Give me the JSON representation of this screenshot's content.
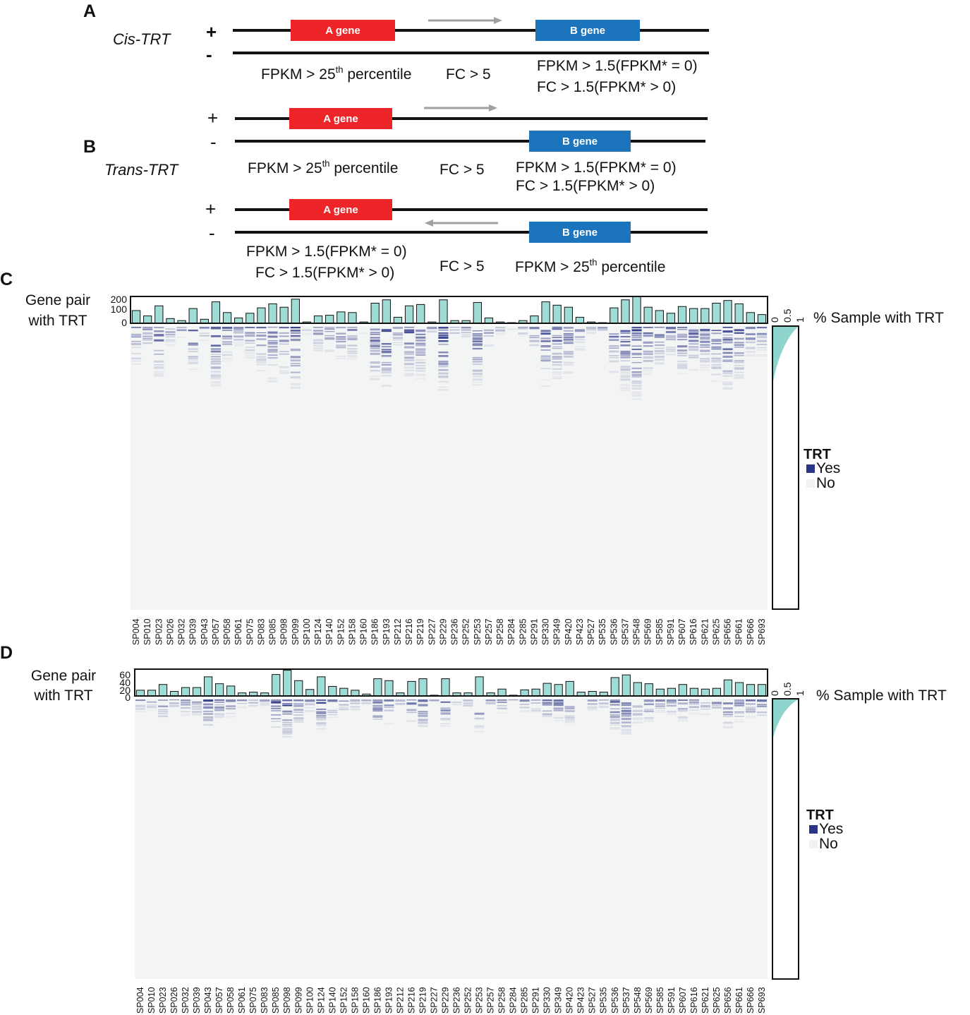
{
  "colors": {
    "a_gene": "#ee2528",
    "b_gene": "#1c75bc",
    "strand": "#111111",
    "arrow": "#a0a0a0",
    "bar_fill": "#9fdcd6",
    "trt_yes": "#2a3586",
    "trt_no": "#f1f2f2",
    "heat_bg": "#f3f4f4",
    "side_area": "#8fd3cd"
  },
  "panels": {
    "A": {
      "letter": "A",
      "title": "Cis-TRT",
      "plus": "+",
      "minus": "-",
      "a_gene": "A gene",
      "b_gene": "B gene",
      "crit_a_pre": "FPKM > 25",
      "crit_a_sup": "th",
      "crit_a_post": " percentile",
      "fc": "FC > 5",
      "crit_b1": "FPKM > 1.5(FPKM* = 0)",
      "crit_b2": "FC > 1.5(FPKM* > 0)"
    },
    "B": {
      "letter": "B",
      "title": "Trans-TRT",
      "top": {
        "plus": "+",
        "minus": "-",
        "a_gene": "A gene",
        "b_gene": "B gene",
        "crit_a_pre": "FPKM > 25",
        "crit_a_sup": "th",
        "crit_a_post": " percentile",
        "fc": "FC > 5",
        "crit_b1": "FPKM > 1.5(FPKM* = 0)",
        "crit_b2": "FC > 1.5(FPKM* > 0)"
      },
      "bottom": {
        "plus": "+",
        "minus": "-",
        "a_gene": "A gene",
        "b_gene": "B gene",
        "crit_a1": "FPKM > 1.5(FPKM* = 0)",
        "crit_a2": "FC > 1.5(FPKM* > 0)",
        "fc": "FC > 5",
        "crit_b_pre": "FPKM > 25",
        "crit_b_sup": "th",
        "crit_b_post": " percentile"
      }
    },
    "C": {
      "letter": "C",
      "ylabel1": "Gene pair",
      "ylabel2": "with TRT",
      "right_label": "% Sample with TRT",
      "yticks": [
        "200",
        "100",
        "0"
      ],
      "side_ticks": [
        "0",
        "0.5",
        "1"
      ],
      "legend_title": "TRT",
      "legend_yes": "Yes",
      "legend_no": "No"
    },
    "D": {
      "letter": "D",
      "ylabel1": "Gene pair",
      "ylabel2": "with TRT",
      "right_label": "% Sample with TRT",
      "yticks": [
        "60",
        "40",
        "20",
        "0"
      ],
      "side_ticks": [
        "0",
        "0.5",
        "1"
      ],
      "legend_title": "TRT",
      "legend_yes": "Yes",
      "legend_no": "No"
    }
  },
  "chart_data": [
    {
      "type": "bar",
      "panel": "C",
      "ylabel": "Gene pair with TRT",
      "ylim": [
        0,
        200
      ],
      "categories": [
        "SP004",
        "SP010",
        "SP023",
        "SP026",
        "SP032",
        "SP039",
        "SP043",
        "SP057",
        "SP058",
        "SP061",
        "SP075",
        "SP083",
        "SP085",
        "SP098",
        "SP099",
        "SP100",
        "SP124",
        "SP140",
        "SP152",
        "SP158",
        "SP160",
        "SP186",
        "SP193",
        "SP212",
        "SP216",
        "SP219",
        "SP227",
        "SP229",
        "SP236",
        "SP252",
        "SP253",
        "SP257",
        "SP258",
        "SP284",
        "SP285",
        "SP291",
        "SP330",
        "SP349",
        "SP420",
        "SP423",
        "SP527",
        "SP535",
        "SP536",
        "SP537",
        "SP548",
        "SP569",
        "SP585",
        "SP591",
        "SP607",
        "SP616",
        "SP621",
        "SP625",
        "SP656",
        "SP661",
        "SP666",
        "SP693"
      ],
      "values": [
        95,
        55,
        130,
        35,
        20,
        110,
        30,
        160,
        80,
        40,
        75,
        115,
        145,
        120,
        180,
        10,
        55,
        60,
        85,
        80,
        10,
        150,
        175,
        45,
        130,
        140,
        10,
        175,
        20,
        20,
        155,
        40,
        10,
        5,
        20,
        55,
        160,
        135,
        120,
        45,
        10,
        5,
        115,
        175,
        205,
        120,
        95,
        75,
        125,
        110,
        110,
        150,
        170,
        145,
        80,
        65
      ]
    },
    {
      "type": "bar",
      "panel": "D",
      "ylabel": "Gene pair with TRT",
      "ylim": [
        0,
        70
      ],
      "categories": [
        "SP004",
        "SP010",
        "SP023",
        "SP026",
        "SP032",
        "SP039",
        "SP043",
        "SP057",
        "SP058",
        "SP061",
        "SP075",
        "SP083",
        "SP085",
        "SP098",
        "SP099",
        "SP100",
        "SP124",
        "SP140",
        "SP152",
        "SP158",
        "SP160",
        "SP186",
        "SP193",
        "SP212",
        "SP216",
        "SP219",
        "SP227",
        "SP229",
        "SP236",
        "SP252",
        "SP253",
        "SP257",
        "SP258",
        "SP284",
        "SP285",
        "SP291",
        "SP330",
        "SP349",
        "SP420",
        "SP423",
        "SP527",
        "SP535",
        "SP536",
        "SP537",
        "SP548",
        "SP569",
        "SP585",
        "SP591",
        "SP607",
        "SP616",
        "SP621",
        "SP625",
        "SP656",
        "SP661",
        "SP666",
        "SP693"
      ],
      "values": [
        15,
        15,
        30,
        12,
        22,
        22,
        50,
        32,
        26,
        8,
        10,
        8,
        56,
        67,
        40,
        17,
        50,
        25,
        20,
        15,
        5,
        45,
        40,
        8,
        38,
        45,
        2,
        45,
        8,
        8,
        50,
        8,
        18,
        2,
        16,
        18,
        33,
        30,
        38,
        10,
        12,
        10,
        48,
        55,
        35,
        32,
        18,
        20,
        30,
        20,
        18,
        20,
        42,
        35,
        30,
        30
      ]
    }
  ]
}
